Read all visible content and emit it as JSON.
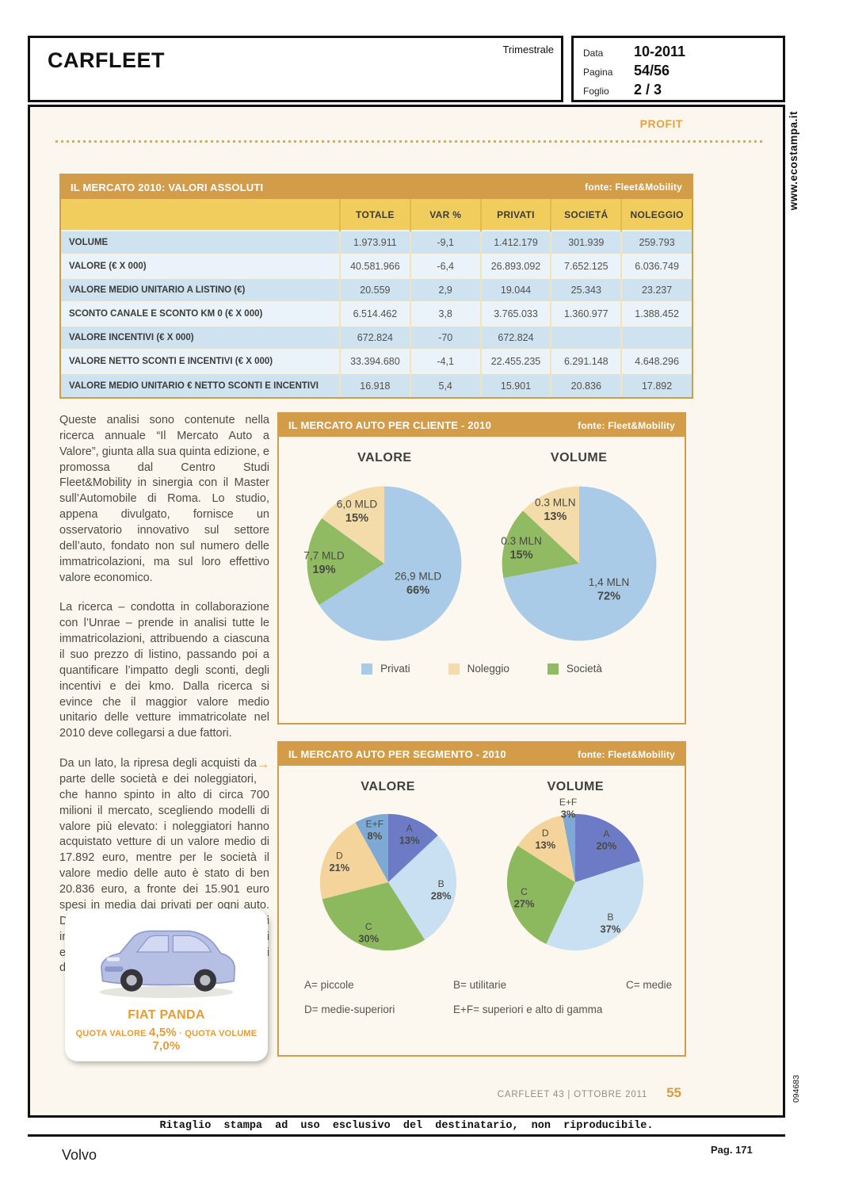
{
  "header": {
    "publication": "CARFLEET",
    "frequency": "Trimestrale",
    "meta": [
      {
        "label": "Data",
        "value": "10-2011"
      },
      {
        "label": "Pagina",
        "value": "54/56"
      },
      {
        "label": "Foglio",
        "value": "2 / 3"
      }
    ]
  },
  "sidebar": {
    "watermark": "www.ecostampa.it",
    "code": "094683"
  },
  "page": {
    "section_label": "PROFIT",
    "footer_left": "CARFLEET 43  |  OTTOBRE 2011",
    "footer_page": "55",
    "disclaimer": "Ritaglio stampa ad uso esclusivo del destinatario, non riproducibile.",
    "client": "Volvo",
    "page_ref": "Pag. 171"
  },
  "colors": {
    "accent_orange": "#d29c49",
    "header_yellow": "#f0cd5c",
    "profit_orange": "#e5a23c"
  },
  "table": {
    "title": "IL MERCATO 2010: VALORI ASSOLUTI",
    "source": "fonte: Fleet&Mobility",
    "columns": [
      "TOTALE",
      "VAR %",
      "PRIVATI",
      "SOCIETÁ",
      "NOLEGGIO"
    ],
    "rows": [
      {
        "label": "VOLUME",
        "values": [
          "1.973.911",
          "-9,1",
          "1.412.179",
          "301.939",
          "259.793"
        ]
      },
      {
        "label": "VALORE (€ X 000)",
        "values": [
          "40.581.966",
          "-6,4",
          "26.893.092",
          "7.652.125",
          "6.036.749"
        ]
      },
      {
        "label": "VALORE MEDIO UNITARIO A LISTINO (€)",
        "values": [
          "20.559",
          "2,9",
          "19.044",
          "25.343",
          "23.237"
        ]
      },
      {
        "label": "SCONTO CANALE E SCONTO KM 0 (€ X 000)",
        "values": [
          "6.514.462",
          "3,8",
          "3.765.033",
          "1.360.977",
          "1.388.452"
        ]
      },
      {
        "label": "VALORE INCENTIVI (€ X 000)",
        "values": [
          "672.824",
          "-70",
          "672.824",
          "",
          ""
        ]
      },
      {
        "label": "VALORE NETTO SCONTI E INCENTIVI (€ X 000)",
        "values": [
          "33.394.680",
          "-4,1",
          "22.455.235",
          "6.291.148",
          "4.648.296"
        ]
      },
      {
        "label": "VALORE MEDIO UNITARIO € NETTO SCONTI E INCENTIVI",
        "values": [
          "16.918",
          "5,4",
          "15.901",
          "20.836",
          "17.892"
        ]
      }
    ]
  },
  "article": {
    "paragraphs": [
      "Queste analisi sono contenute nella ricerca annuale “Il Mercato Auto a Valore”, giunta alla sua quinta edizione, e promossa dal Centro Studi Fleet&Mobility in sinergia con il Master sull’Automobile di Roma. Lo studio, appena divulgato, fornisce un osservatorio innovativo sul settore dell’auto, fondato non sul numero delle immatricolazioni, ma sul loro effettivo valore economico.",
      "La ricerca – condotta in collaborazione con l’Unrae – prende in analisi tutte le immatricolazioni, attribuendo a ciascuna il suo prezzo di listino, passando poi a quantificare l’impatto degli sconti, degli incentivi e dei kmo. Dalla ricerca si evince che il maggior valore medio unitario delle vetture immatricolate nel 2010 deve collegarsi a due fattori.",
      "Da un lato, la ripresa degli acquisti da parte delle società e dei noleggiatori, che hanno spinto in alto di circa 700 milioni il mercato, scegliendo modelli di valore più elevato: i noleggiatori hanno acquistato vetture di un valore medio di 17.892 euro, mentre per le società il valore medio delle auto è stato di ben 20.836 euro, a fronte dei 15.901 euro spesi in media dai privati per ogni auto. Dall’altro lato, il minore impatto degli incentivi, pari nel 2010 a 673 milioni di euro a fronte dei 2 miliardi e 243 milioni del 2009."
    ],
    "arrow": "→"
  },
  "panda_card": {
    "model": "FIAT PANDA",
    "quota_label_1": "QUOTA VALORE",
    "quota_value_1": "4,5%",
    "separator": "·",
    "quota_label_2": "QUOTA VOLUME",
    "quota_value_2": "7,0%"
  },
  "chart_data": [
    {
      "type": "pie",
      "title": "IL MERCATO AUTO PER CLIENTE - 2010",
      "source": "fonte: Fleet&Mobility",
      "legend": [
        {
          "label": "Privati",
          "color": "#a9cbe8"
        },
        {
          "label": "Noleggio",
          "color": "#f3dca9"
        },
        {
          "label": "Società",
          "color": "#90bb62"
        }
      ],
      "pies": [
        {
          "name": "VALORE",
          "slices": [
            {
              "label": "Privati",
              "value_text": "26,9 MLD",
              "pct": 66,
              "pct_label": "66%",
              "color": "#a9cbe8"
            },
            {
              "label": "Società",
              "value_text": "7,7 MLD",
              "pct": 19,
              "pct_label": "19%",
              "color": "#90bb62"
            },
            {
              "label": "Noleggio",
              "value_text": "6,0 MLD",
              "pct": 15,
              "pct_label": "15%",
              "color": "#f3dca9"
            }
          ]
        },
        {
          "name": "VOLUME",
          "slices": [
            {
              "label": "Privati",
              "value_text": "1,4 MLN",
              "pct": 72,
              "pct_label": "72%",
              "color": "#a9cbe8"
            },
            {
              "label": "Società",
              "value_text": "0.3 MLN",
              "pct": 15,
              "pct_label": "15%",
              "color": "#90bb62"
            },
            {
              "label": "Noleggio",
              "value_text": "0.3 MLN",
              "pct": 13,
              "pct_label": "13%",
              "color": "#f3dca9"
            }
          ]
        }
      ]
    },
    {
      "type": "pie",
      "title": "IL MERCATO AUTO PER SEGMENTO - 2010",
      "source": "fonte: Fleet&Mobility",
      "legend": [
        {
          "label": "A= piccole"
        },
        {
          "label": "B= utilitarie"
        },
        {
          "label": "C= medie"
        },
        {
          "label": "D= medie-superiori"
        },
        {
          "label": "E+F= superiori e alto di gamma"
        }
      ],
      "pies": [
        {
          "name": "VALORE",
          "slices": [
            {
              "label": "A",
              "pct": 13,
              "pct_label": "13%",
              "color": "#6d7bc7"
            },
            {
              "label": "B",
              "pct": 28,
              "pct_label": "28%",
              "color": "#c9e0f3"
            },
            {
              "label": "C",
              "pct": 30,
              "pct_label": "30%",
              "color": "#8cb95e"
            },
            {
              "label": "D",
              "pct": 21,
              "pct_label": "21%",
              "color": "#f5d49b"
            },
            {
              "label": "E+F",
              "pct": 8,
              "pct_label": "8%",
              "color": "#7ea9d4"
            }
          ]
        },
        {
          "name": "VOLUME",
          "slices": [
            {
              "label": "A",
              "pct": 20,
              "pct_label": "20%",
              "color": "#6d7bc7"
            },
            {
              "label": "B",
              "pct": 37,
              "pct_label": "37%",
              "color": "#c9e0f3"
            },
            {
              "label": "C",
              "pct": 27,
              "pct_label": "27%",
              "color": "#8cb95e"
            },
            {
              "label": "D",
              "pct": 13,
              "pct_label": "13%",
              "color": "#f5d49b"
            },
            {
              "label": "E+F",
              "pct": 3,
              "pct_label": "3%",
              "color": "#7ea9d4"
            }
          ]
        }
      ]
    }
  ]
}
